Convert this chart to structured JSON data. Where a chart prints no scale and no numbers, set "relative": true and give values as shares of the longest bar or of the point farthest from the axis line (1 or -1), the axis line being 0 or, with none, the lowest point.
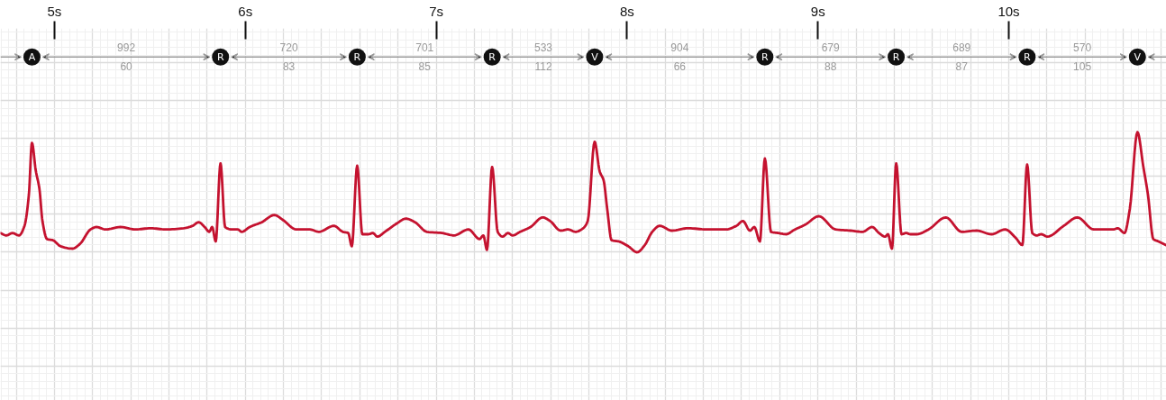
{
  "chart_data": {
    "type": "line",
    "relative": true,
    "tick_labels": "x",
    "grid": true,
    "xlim": [
      4.717,
      10.826
    ],
    "xticks": [
      {
        "value": 5,
        "label": "5s"
      },
      {
        "value": 6,
        "label": "6s"
      },
      {
        "value": 7,
        "label": "7s"
      },
      {
        "value": 8,
        "label": "8s"
      },
      {
        "value": 9,
        "label": "9s"
      },
      {
        "value": 10,
        "label": "10s"
      }
    ],
    "x": [
      4.717,
      4.748,
      4.78,
      4.814,
      4.843,
      4.866,
      4.882,
      4.902,
      4.921,
      4.937,
      4.961,
      4.992,
      5.032,
      5.094,
      5.134,
      5.189,
      5.22,
      5.268,
      5.346,
      5.425,
      5.504,
      5.582,
      5.677,
      5.724,
      5.755,
      5.787,
      5.811,
      5.826,
      5.845,
      5.87,
      5.894,
      5.929,
      5.96,
      5.981,
      6.023,
      6.086,
      6.152,
      6.196,
      6.267,
      6.338,
      6.385,
      6.464,
      6.511,
      6.539,
      6.558,
      6.586,
      6.613,
      6.644,
      6.668,
      6.692,
      6.731,
      6.794,
      6.841,
      6.889,
      6.951,
      7.03,
      7.093,
      7.169,
      7.227,
      7.247,
      7.266,
      7.293,
      7.322,
      7.348,
      7.376,
      7.4,
      7.44,
      7.494,
      7.558,
      7.597,
      7.652,
      7.691,
      7.73,
      7.77,
      7.794,
      7.83,
      7.857,
      7.877,
      7.896,
      7.919,
      7.956,
      8.006,
      8.053,
      8.093,
      8.132,
      8.171,
      8.234,
      8.321,
      8.415,
      8.518,
      8.573,
      8.607,
      8.644,
      8.667,
      8.696,
      8.722,
      8.754,
      8.793,
      8.832,
      8.88,
      8.934,
      9.005,
      9.092,
      9.171,
      9.234,
      9.284,
      9.32,
      9.352,
      9.367,
      9.388,
      9.41,
      9.438,
      9.462,
      9.485,
      9.517,
      9.58,
      9.67,
      9.753,
      9.831,
      9.91,
      9.981,
      10.036,
      10.071,
      10.096,
      10.123,
      10.146,
      10.17,
      10.202,
      10.288,
      10.359,
      10.445,
      10.508,
      10.548,
      10.571,
      10.606,
      10.634,
      10.674,
      10.705,
      10.729,
      10.757,
      10.784,
      10.823
    ],
    "series": [
      {
        "color": "#c4122f",
        "values": [
          0.16,
          0.14,
          0.16,
          0.14,
          0.22,
          0.48,
          0.91,
          0.68,
          0.53,
          0.26,
          0.11,
          0.1,
          0.05,
          0.03,
          0.07,
          0.19,
          0.21,
          0.19,
          0.21,
          0.19,
          0.2,
          0.19,
          0.2,
          0.22,
          0.25,
          0.21,
          0.17,
          0.21,
          0.09,
          0.74,
          0.21,
          0.19,
          0.19,
          0.17,
          0.21,
          0.25,
          0.31,
          0.27,
          0.19,
          0.19,
          0.17,
          0.22,
          0.17,
          0.16,
          0.05,
          0.72,
          0.15,
          0.15,
          0.16,
          0.13,
          0.17,
          0.24,
          0.28,
          0.25,
          0.17,
          0.16,
          0.14,
          0.19,
          0.11,
          0.14,
          0.02,
          0.71,
          0.17,
          0.13,
          0.16,
          0.14,
          0.17,
          0.21,
          0.29,
          0.26,
          0.18,
          0.19,
          0.17,
          0.2,
          0.26,
          0.92,
          0.67,
          0.6,
          0.36,
          0.1,
          0.09,
          0.05,
          0,
          0.06,
          0.17,
          0.22,
          0.18,
          0.2,
          0.19,
          0.19,
          0.22,
          0.26,
          0.18,
          0.21,
          0.09,
          0.78,
          0.17,
          0.16,
          0.15,
          0.19,
          0.23,
          0.3,
          0.19,
          0.18,
          0.17,
          0.21,
          0.16,
          0.13,
          0.15,
          0.03,
          0.74,
          0.15,
          0.16,
          0.15,
          0.15,
          0.19,
          0.29,
          0.17,
          0.18,
          0.15,
          0.19,
          0.12,
          0.06,
          0.73,
          0.16,
          0.14,
          0.15,
          0.13,
          0.22,
          0.29,
          0.19,
          0.19,
          0.19,
          0.2,
          0.16,
          0.36,
          1,
          0.71,
          0.48,
          0.11,
          0.09,
          0.06
        ]
      }
    ],
    "annotations": [
      "A",
      "R",
      "R",
      "R",
      "V",
      "R",
      "R",
      "R",
      "V",
      "992",
      "60",
      "720",
      "83",
      "701",
      "85",
      "533",
      "112",
      "904",
      "66",
      "679",
      "88",
      "689",
      "87",
      "570",
      "105"
    ]
  }
}
